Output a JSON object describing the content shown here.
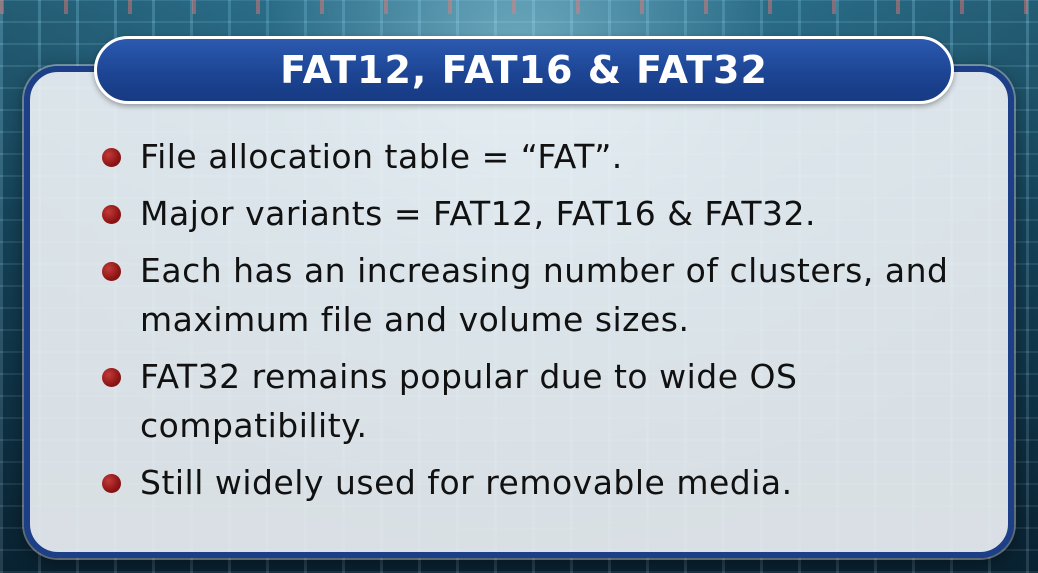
{
  "slide": {
    "title": "FAT12, FAT16 & FAT32",
    "bullets": [
      "File allocation table = “FAT”.",
      "Major variants = FAT12, FAT16 & FAT32.",
      "Each has an increasing number of clusters, and maximum file and volume sizes.",
      "FAT32 remains popular due to wide OS compatibility.",
      "Still widely used for removable media."
    ]
  },
  "colors": {
    "title_bar": "#1d4594",
    "card_border": "#1c3f87",
    "bullet": "#8e1414",
    "text": "#111111"
  },
  "icons": {
    "bullet": "bullet-dot-icon"
  }
}
